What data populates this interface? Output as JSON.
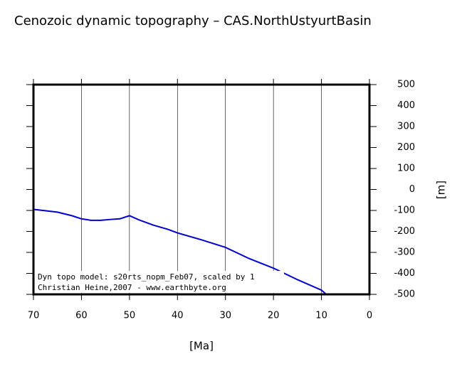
{
  "chart_data": {
    "type": "line",
    "title": "Cenozoic dynamic topography – CAS.NorthUstyurtBasin",
    "x_label": "[Ma]",
    "y_label": "[m]",
    "annotations": [
      "Dyn topo model: s20rts_nopm_Feb07, scaled by 1",
      "Christian Heine,2007 - www.earthbyte.org"
    ],
    "x": [
      70,
      68,
      65,
      62,
      60,
      58,
      56,
      54,
      52,
      50,
      48,
      45,
      42,
      40,
      35,
      30,
      25,
      20,
      15,
      10,
      9
    ],
    "series": [
      {
        "name": "dynamic topography",
        "color": "#0000cc",
        "values": [
          -95,
          -100,
          -108,
          -125,
          -140,
          -147,
          -147,
          -143,
          -140,
          -125,
          -145,
          -170,
          -190,
          -207,
          -240,
          -276,
          -330,
          -375,
          -430,
          -480,
          -500
        ]
      }
    ],
    "xlim": [
      70,
      0
    ],
    "xticks": [
      70,
      60,
      50,
      40,
      30,
      20,
      10,
      0
    ],
    "ylim": [
      -500,
      500
    ],
    "yticks": [
      500,
      400,
      300,
      200,
      100,
      0,
      -100,
      -200,
      -300,
      -400,
      -500
    ],
    "grid": true
  }
}
